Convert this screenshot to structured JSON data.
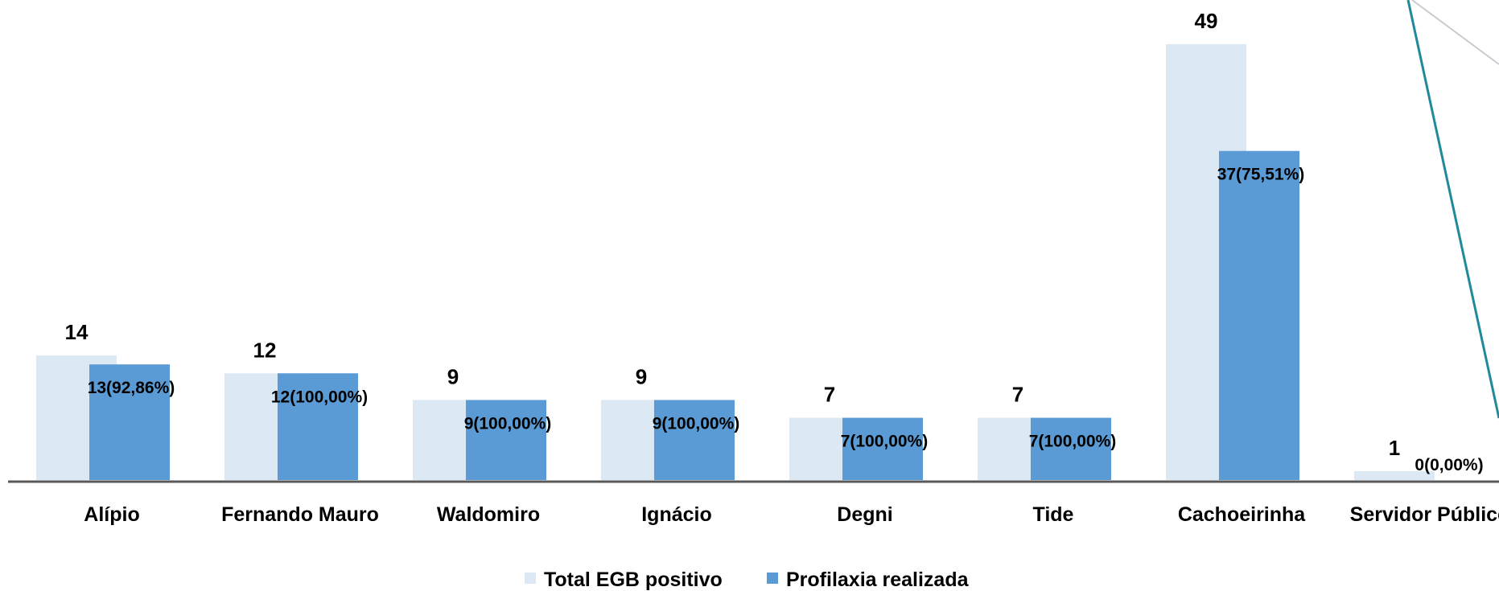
{
  "chart_data": {
    "type": "bar",
    "categories": [
      "Alípio",
      "Fernando Mauro",
      "Waldomiro",
      "Ignácio",
      "Degni",
      "Tide",
      "Cachoeirinha",
      "Servidor Público"
    ],
    "series": [
      {
        "name": "Total EGB positivo",
        "color": "#dde8f5",
        "values": [
          14,
          12,
          9,
          9,
          7,
          7,
          49,
          1
        ],
        "labels": [
          "14",
          "12",
          "9",
          "9",
          "7",
          "7",
          "49",
          "1"
        ]
      },
      {
        "name": "Profilaxia realizada",
        "color": "#5b9bd5",
        "values": [
          13,
          12,
          9,
          9,
          7,
          7,
          37,
          0
        ],
        "labels": [
          "13(92,86%)",
          "12(100,00%)",
          "9(100,00%)",
          "9(100,00%)",
          "7(100,00%)",
          "7(100,00%)",
          "37(75,51%)",
          "0(0,00%)"
        ]
      }
    ],
    "ylim": [
      0,
      49
    ],
    "grid": false,
    "legend_position": "bottom",
    "decoration_color": "#1f8a9a"
  }
}
